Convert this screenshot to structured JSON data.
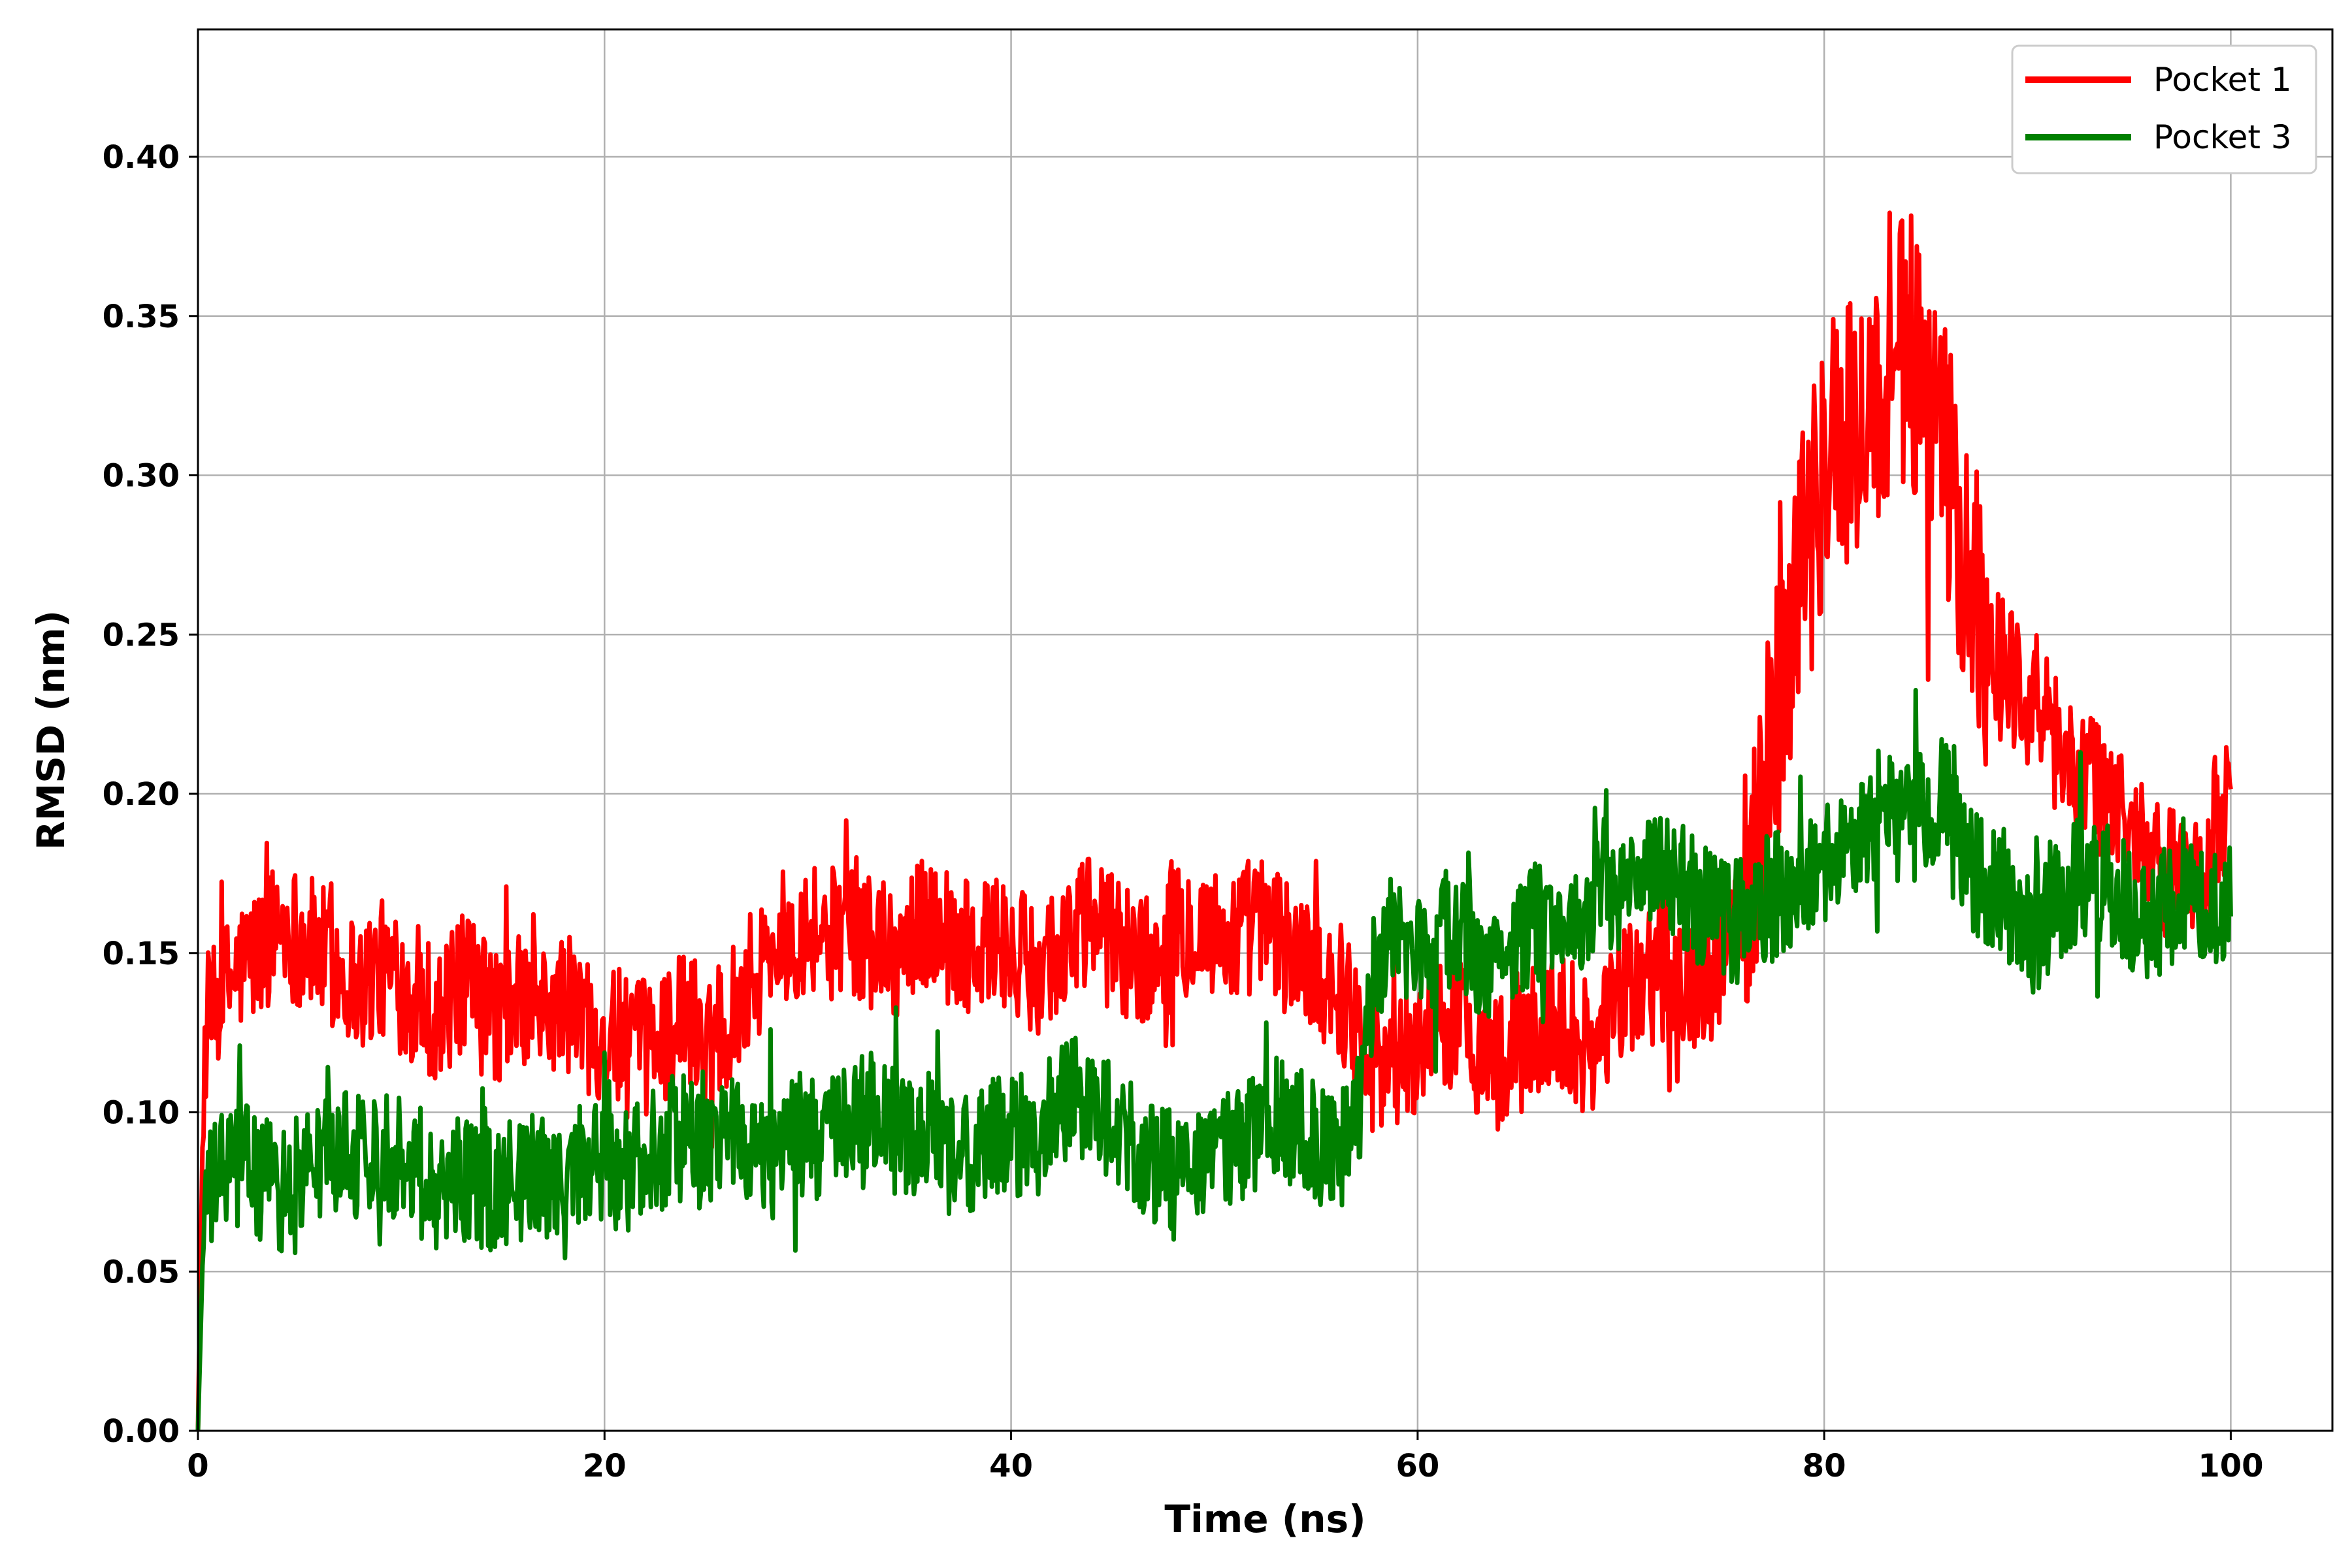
{
  "chart_data": {
    "type": "line",
    "title": "",
    "xlabel": "Time (ns)",
    "ylabel": "RMSD (nm)",
    "xlim": [
      0,
      105
    ],
    "ylim": [
      0,
      0.44
    ],
    "xticks": [
      0,
      20,
      40,
      60,
      80,
      100
    ],
    "xtick_labels": [
      "0",
      "20",
      "40",
      "60",
      "80",
      "100"
    ],
    "yticks": [
      0.0,
      0.05,
      0.1,
      0.15,
      0.2,
      0.25,
      0.3,
      0.35,
      0.4
    ],
    "ytick_labels": [
      "0.00",
      "0.05",
      "0.10",
      "0.15",
      "0.20",
      "0.25",
      "0.30",
      "0.35",
      "0.40"
    ],
    "grid": true,
    "legend_position": "top-right",
    "series": [
      {
        "name": "Pocket 1",
        "color": "#ff0000",
        "x": [
          0,
          0.3,
          1,
          2,
          3,
          4,
          5,
          6,
          7,
          8,
          9,
          10,
          11,
          12,
          13,
          14,
          15,
          16,
          17,
          18,
          19,
          20,
          21,
          22,
          23,
          24,
          25,
          26,
          27,
          28,
          29,
          30,
          31,
          32,
          33,
          34,
          35,
          36,
          37,
          38,
          39,
          40,
          41,
          42,
          43,
          44,
          45,
          46,
          47,
          48,
          49,
          50,
          51,
          52,
          53,
          54,
          55,
          56,
          57,
          58,
          59,
          60,
          61,
          62,
          63,
          64,
          65,
          66,
          67,
          68,
          69,
          70,
          71,
          72,
          73,
          74,
          75,
          76,
          77,
          78,
          79,
          80,
          81,
          82,
          83,
          84,
          85,
          86,
          87,
          88,
          89,
          90,
          91,
          92,
          93,
          94,
          95,
          96,
          97,
          98,
          99,
          100
        ],
        "y": [
          0.0,
          0.12,
          0.135,
          0.145,
          0.15,
          0.16,
          0.155,
          0.15,
          0.145,
          0.14,
          0.145,
          0.14,
          0.135,
          0.13,
          0.14,
          0.135,
          0.13,
          0.135,
          0.13,
          0.135,
          0.13,
          0.125,
          0.12,
          0.12,
          0.125,
          0.13,
          0.125,
          0.13,
          0.14,
          0.15,
          0.155,
          0.16,
          0.155,
          0.16,
          0.155,
          0.15,
          0.155,
          0.16,
          0.155,
          0.15,
          0.155,
          0.15,
          0.145,
          0.15,
          0.155,
          0.16,
          0.155,
          0.15,
          0.145,
          0.155,
          0.16,
          0.155,
          0.155,
          0.16,
          0.155,
          0.15,
          0.145,
          0.14,
          0.13,
          0.12,
          0.115,
          0.12,
          0.125,
          0.13,
          0.12,
          0.115,
          0.12,
          0.125,
          0.13,
          0.12,
          0.125,
          0.135,
          0.14,
          0.15,
          0.145,
          0.14,
          0.15,
          0.17,
          0.2,
          0.24,
          0.28,
          0.3,
          0.31,
          0.32,
          0.33,
          0.34,
          0.33,
          0.3,
          0.27,
          0.25,
          0.24,
          0.23,
          0.22,
          0.21,
          0.205,
          0.2,
          0.19,
          0.18,
          0.175,
          0.17,
          0.18,
          0.2
        ]
      },
      {
        "name": "Pocket 3",
        "color": "#008000",
        "x": [
          0,
          0.3,
          1,
          2,
          3,
          4,
          5,
          6,
          7,
          8,
          9,
          10,
          11,
          12,
          13,
          14,
          15,
          16,
          17,
          18,
          19,
          20,
          21,
          22,
          23,
          24,
          25,
          26,
          27,
          28,
          29,
          30,
          31,
          32,
          33,
          34,
          35,
          36,
          37,
          38,
          39,
          40,
          41,
          42,
          43,
          44,
          45,
          46,
          47,
          48,
          49,
          50,
          51,
          52,
          53,
          54,
          55,
          56,
          57,
          58,
          59,
          60,
          61,
          62,
          63,
          64,
          65,
          66,
          67,
          68,
          69,
          70,
          71,
          72,
          73,
          74,
          75,
          76,
          77,
          78,
          79,
          80,
          81,
          82,
          83,
          84,
          85,
          86,
          87,
          88,
          89,
          90,
          91,
          92,
          93,
          94,
          95,
          96,
          97,
          98,
          99,
          100
        ],
        "y": [
          0.0,
          0.07,
          0.08,
          0.085,
          0.08,
          0.075,
          0.08,
          0.085,
          0.09,
          0.085,
          0.09,
          0.085,
          0.08,
          0.075,
          0.08,
          0.075,
          0.078,
          0.08,
          0.078,
          0.075,
          0.08,
          0.085,
          0.082,
          0.085,
          0.09,
          0.095,
          0.085,
          0.1,
          0.09,
          0.085,
          0.09,
          0.095,
          0.09,
          0.095,
          0.1,
          0.095,
          0.09,
          0.095,
          0.09,
          0.085,
          0.09,
          0.095,
          0.09,
          0.1,
          0.105,
          0.1,
          0.095,
          0.09,
          0.085,
          0.08,
          0.078,
          0.085,
          0.09,
          0.095,
          0.1,
          0.095,
          0.09,
          0.085,
          0.1,
          0.15,
          0.155,
          0.15,
          0.155,
          0.16,
          0.15,
          0.145,
          0.155,
          0.16,
          0.15,
          0.16,
          0.17,
          0.165,
          0.17,
          0.175,
          0.17,
          0.165,
          0.16,
          0.16,
          0.165,
          0.17,
          0.175,
          0.18,
          0.185,
          0.19,
          0.195,
          0.19,
          0.195,
          0.2,
          0.18,
          0.17,
          0.165,
          0.16,
          0.165,
          0.17,
          0.175,
          0.17,
          0.165,
          0.16,
          0.165,
          0.17,
          0.16,
          0.165
        ]
      }
    ]
  }
}
